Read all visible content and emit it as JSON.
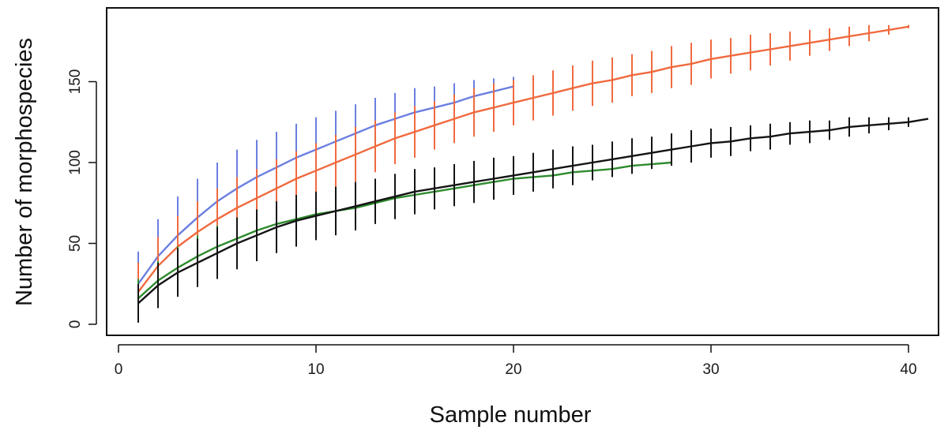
{
  "chart_data": {
    "type": "line",
    "title": "",
    "xlabel": "Sample number",
    "ylabel": "Number of morphospecies",
    "xlim": [
      0,
      41
    ],
    "ylim": [
      0,
      185
    ],
    "xticks": [
      0,
      10,
      20,
      30,
      40
    ],
    "yticks": [
      0,
      50,
      100,
      150
    ],
    "grid": false,
    "legend": "none",
    "series": [
      {
        "color": "#6b7fe0",
        "x": [
          1,
          2,
          3,
          4,
          5,
          6,
          7,
          8,
          9,
          10,
          11,
          12,
          13,
          14,
          15,
          16,
          17,
          18,
          19,
          20
        ],
        "y": [
          25,
          42,
          55,
          66,
          76,
          84,
          91,
          97,
          103,
          108,
          113,
          118,
          123,
          127,
          131,
          134,
          137,
          141,
          144,
          147
        ],
        "err": [
          20,
          23,
          24,
          24,
          24,
          24,
          23,
          22,
          21,
          20,
          19,
          18,
          17,
          16,
          15,
          13,
          12,
          10,
          8,
          6
        ]
      },
      {
        "color": "#f06a3f",
        "x": [
          1,
          2,
          3,
          4,
          5,
          6,
          7,
          8,
          9,
          10,
          11,
          12,
          13,
          14,
          15,
          16,
          17,
          18,
          19,
          20,
          21,
          22,
          23,
          24,
          25,
          26,
          27,
          28,
          29,
          30,
          31,
          32,
          33,
          34,
          35,
          36,
          37,
          38,
          39,
          40
        ],
        "y": [
          20,
          36,
          48,
          57,
          65,
          72,
          78,
          84,
          90,
          95,
          100,
          105,
          110,
          115,
          119,
          123,
          127,
          131,
          134,
          137,
          140,
          143,
          146,
          149,
          151,
          154,
          156,
          159,
          161,
          164,
          166,
          168,
          170,
          172,
          174,
          176,
          178,
          180,
          182,
          184
        ],
        "err": [
          18,
          18,
          19,
          19,
          19,
          19,
          18,
          18,
          17,
          17,
          17,
          17,
          16,
          16,
          16,
          15,
          15,
          15,
          15,
          14,
          14,
          14,
          14,
          14,
          14,
          13,
          13,
          13,
          13,
          12,
          11,
          11,
          10,
          9,
          8,
          7,
          6,
          5,
          3,
          1
        ]
      },
      {
        "color": "#2e8b2e",
        "x": [
          1,
          2,
          3,
          4,
          5,
          6,
          7,
          8,
          9,
          10,
          11,
          12,
          13,
          14,
          15,
          16,
          17,
          18,
          19,
          20,
          21,
          22,
          23,
          24,
          25,
          26,
          27,
          28
        ],
        "y": [
          16,
          27,
          35,
          42,
          48,
          53,
          58,
          62,
          65,
          68,
          70,
          72,
          75,
          78,
          80,
          82,
          84,
          86,
          88,
          90,
          91,
          92,
          94,
          95,
          96,
          98,
          99,
          100
        ],
        "err": [
          12,
          12,
          13,
          13,
          13,
          13,
          13,
          12,
          12,
          12,
          11,
          11,
          10,
          10,
          10,
          9,
          9,
          8,
          8,
          7,
          7,
          6,
          6,
          5,
          4,
          3,
          2,
          0
        ]
      },
      {
        "color": "#141414",
        "x": [
          1,
          2,
          3,
          4,
          5,
          6,
          7,
          8,
          9,
          10,
          11,
          12,
          13,
          14,
          15,
          16,
          17,
          18,
          19,
          20,
          21,
          22,
          23,
          24,
          25,
          26,
          27,
          28,
          29,
          30,
          31,
          32,
          33,
          34,
          35,
          36,
          37,
          38,
          39,
          40,
          41
        ],
        "y": [
          13,
          24,
          32,
          38,
          44,
          50,
          55,
          60,
          64,
          67,
          70,
          73,
          76,
          79,
          82,
          84,
          86,
          88,
          90,
          92,
          94,
          96,
          98,
          100,
          102,
          104,
          106,
          108,
          110,
          112,
          113,
          115,
          116,
          118,
          119,
          120,
          122,
          123,
          124,
          125,
          127
        ],
        "err": [
          12,
          14,
          15,
          15,
          16,
          16,
          16,
          16,
          16,
          15,
          15,
          15,
          14,
          14,
          14,
          13,
          13,
          13,
          13,
          12,
          12,
          12,
          12,
          11,
          11,
          11,
          10,
          10,
          10,
          9,
          9,
          8,
          8,
          7,
          7,
          6,
          6,
          5,
          4,
          3,
          0
        ]
      }
    ]
  }
}
